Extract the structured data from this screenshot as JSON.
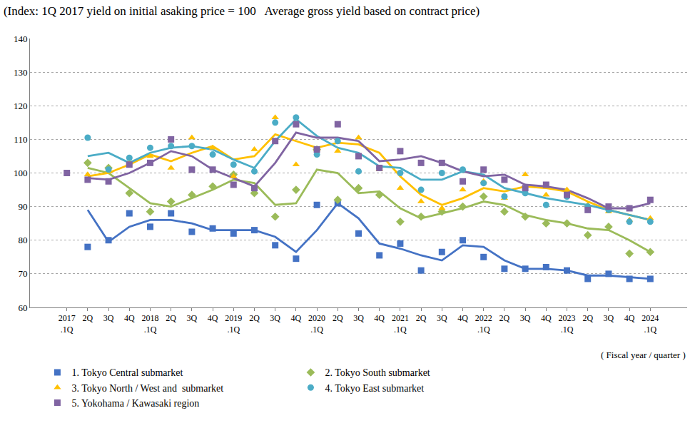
{
  "chart_data": {
    "type": "line",
    "title": "(Index: 1Q 2017 yield on initial asaking price = 100   Average gross yield based on contract price)",
    "x_label": "( Fiscal year / quarter )",
    "categories": [
      "2017\n.1Q",
      "2Q",
      "3Q",
      "4Q",
      "2018\n.1Q",
      "2Q",
      "3Q",
      "4Q",
      "2019\n.1Q",
      "2Q",
      "3Q",
      "4Q",
      "2020\n.1Q",
      "2Q",
      "3Q",
      "4Q",
      "2021\n.1Q",
      "2Q",
      "3Q",
      "4Q",
      "2022\n.1Q",
      "2Q",
      "3Q",
      "4Q",
      "2023\n.1Q",
      "2Q",
      "3Q",
      "4Q",
      "2024\n.1Q"
    ],
    "series": [
      {
        "name": "1. Tokyo Central submarket",
        "color": "#4472c4",
        "marker": "square",
        "values": [
          null,
          78,
          80,
          88,
          84,
          88,
          82.5,
          83.5,
          82,
          83,
          78.5,
          74.5,
          90.5,
          91,
          82,
          75.5,
          79,
          71,
          76.5,
          80,
          75,
          71.5,
          71.5,
          72,
          71,
          68.5,
          70,
          68.5,
          68.5
        ],
        "trend": [
          null,
          89,
          79.5,
          84,
          86,
          86,
          85,
          83,
          83,
          83,
          81,
          76.5,
          83,
          91,
          86.5,
          79,
          77.5,
          75.5,
          74,
          78.5,
          78,
          74,
          71.5,
          71.5,
          71,
          69.5,
          69.5,
          69,
          68.5
        ]
      },
      {
        "name": "2. Tokyo South submarket",
        "color": "#9bbb59",
        "marker": "diamond",
        "values": [
          null,
          103,
          101.5,
          94,
          88.5,
          91.5,
          93.5,
          96,
          99.5,
          94,
          87,
          95,
          107,
          92,
          95.5,
          93.5,
          85.5,
          87,
          88.5,
          90,
          93,
          88.5,
          87,
          85,
          85,
          81.5,
          84,
          76,
          76.5
        ],
        "trend": [
          null,
          101.5,
          100,
          95.5,
          91,
          90,
          92.5,
          95,
          98,
          97,
          90.5,
          91,
          101,
          100,
          94,
          94.5,
          89.5,
          86.5,
          88,
          89.5,
          91.5,
          90.5,
          87.5,
          86,
          85,
          83.5,
          83,
          80,
          76.5
        ]
      },
      {
        "name": "3. Tokyo North / West and  submarket",
        "color": "#ffc000",
        "marker": "triangle-up",
        "values": [
          null,
          99.5,
          100.5,
          103,
          105,
          101.5,
          110.5,
          107.5,
          99,
          107,
          116.5,
          102.5,
          107,
          106.5,
          110.5,
          101,
          95.5,
          91.5,
          89.5,
          95,
          97.5,
          92.5,
          99.5,
          93.5,
          95,
          90.5,
          88.5,
          86,
          86.5
        ],
        "trend": [
          null,
          99,
          100,
          102.5,
          105.5,
          103.5,
          106,
          108,
          104,
          105,
          111.5,
          109.5,
          107.5,
          109,
          108.5,
          106,
          99,
          93.5,
          90.5,
          92.5,
          95.5,
          94.5,
          96,
          95.5,
          94.5,
          91.5,
          89,
          87.5,
          86
        ]
      },
      {
        "name": "4. Tokyo East submarket",
        "color": "#4bacc6",
        "marker": "circle",
        "values": [
          null,
          110.5,
          101,
          104.5,
          107.5,
          108,
          108,
          105.5,
          102.5,
          100.5,
          115,
          116.5,
          105.5,
          109.5,
          100.5,
          101.5,
          100,
          95,
          100,
          101,
          97,
          93,
          94,
          90.5,
          93,
          90,
          89,
          85.5,
          85.5
        ],
        "trend": [
          null,
          105,
          106,
          103,
          106,
          107.5,
          108,
          107,
          104,
          101.5,
          109.5,
          116,
          111,
          107.5,
          106,
          102,
          101.5,
          98,
          98,
          100.5,
          99.5,
          95.5,
          94,
          92.5,
          91.5,
          90.5,
          89,
          87.5,
          86
        ]
      },
      {
        "name": "5. Yokohama / Kawasaki region",
        "color": "#8064a2",
        "marker": "square",
        "values": [
          100,
          98,
          97.5,
          102.5,
          103,
          110,
          101,
          101,
          96.5,
          95.5,
          109.5,
          114.5,
          107,
          114.5,
          105,
          101.5,
          106.5,
          103,
          103,
          97.5,
          101,
          98,
          95.5,
          96.5,
          93.5,
          89,
          90,
          89.5,
          92
        ],
        "trend": [
          null,
          98.5,
          98,
          100,
          103,
          106.5,
          105,
          101,
          98.5,
          96,
          103,
          112,
          110.5,
          110.5,
          109.5,
          103.5,
          104,
          105,
          103,
          100.5,
          99,
          99.5,
          96.5,
          96,
          95,
          92.5,
          89.5,
          89.5,
          91
        ]
      }
    ],
    "ylim": [
      60,
      140
    ],
    "yticks": [
      60,
      70,
      80,
      90,
      100,
      110,
      120,
      130,
      140
    ],
    "grid": true,
    "legend": "bottom"
  }
}
